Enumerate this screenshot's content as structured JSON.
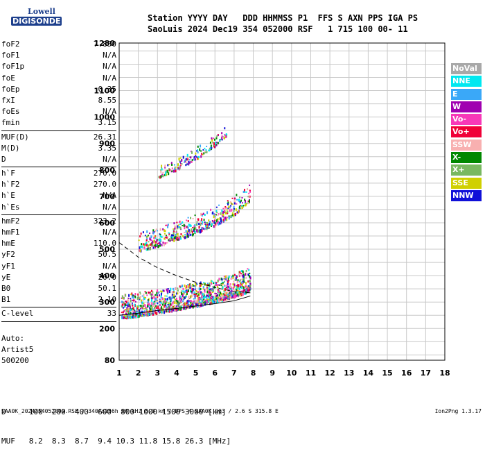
{
  "logo": {
    "line1": "Lowell",
    "line2": "DIGISONDE"
  },
  "header": {
    "line1": "Station YYYY DAY   DDD HHMMSS P1  FFS S AXN PPS IGA PS",
    "line2": "SaoLuis 2024 Dec19 354 052000 RSF   1 715 100 00- 11"
  },
  "params": [
    {
      "name": "foF2",
      "value": "7.850"
    },
    {
      "name": "foF1",
      "value": "N/A"
    },
    {
      "name": "foF1p",
      "value": "N/A"
    },
    {
      "name": "foE",
      "value": "N/A"
    },
    {
      "name": "foEp",
      "value": "0.35"
    },
    {
      "name": "fxI",
      "value": "8.55"
    },
    {
      "name": "foEs",
      "value": "N/A"
    },
    {
      "name": "fmin",
      "value": "3.15",
      "sep_after": true
    },
    {
      "name": "MUF(D)",
      "value": "26.31"
    },
    {
      "name": "M(D)",
      "value": "3.35"
    },
    {
      "name": "D",
      "value": "N/A",
      "sep_after": true
    },
    {
      "name": "h`F",
      "value": "270.0"
    },
    {
      "name": "h`F2",
      "value": "270.0"
    },
    {
      "name": "h`E",
      "value": "N/A"
    },
    {
      "name": "h`Es",
      "value": "N/A",
      "sep_after": true
    },
    {
      "name": "hmF2",
      "value": "323.2"
    },
    {
      "name": "hmF1",
      "value": "N/A"
    },
    {
      "name": "hmE",
      "value": "110.0"
    },
    {
      "name": "yF2",
      "value": "50.5"
    },
    {
      "name": "yF1",
      "value": "N/A"
    },
    {
      "name": "yE",
      "value": "20.0"
    },
    {
      "name": "B0",
      "value": "50.1"
    },
    {
      "name": "B1",
      "value": "2.10",
      "sep_after": true
    },
    {
      "name": "C-level",
      "value": "33",
      "sep_after": true
    }
  ],
  "auto": [
    "Auto:",
    "Artist5",
    "500200"
  ],
  "legend": [
    {
      "label": "NoVal",
      "color": "#a8a8a8"
    },
    {
      "label": "NNE",
      "color": "#00e8f0"
    },
    {
      "label": "E",
      "color": "#3aa8f8"
    },
    {
      "label": "W",
      "color": "#a000b0"
    },
    {
      "label": "Vo-",
      "color": "#f838b8"
    },
    {
      "label": "Vo+",
      "color": "#f00038"
    },
    {
      "label": "SSW",
      "color": "#f8b0b0"
    },
    {
      "label": "X-",
      "color": "#008800"
    },
    {
      "label": "X+",
      "color": "#78b860"
    },
    {
      "label": "SSE",
      "color": "#d0d000"
    },
    {
      "label": "NNW",
      "color": "#1010d8"
    }
  ],
  "dmuf": {
    "line1": "D     100  200  400  600  800 1000 1500 3000 [km]",
    "line2": "MUF   8.2  8.3  8.7  9.4 10.3 11.8 15.8 26.3 [MHz]"
  },
  "footer": {
    "left": "SAA0K_2024354052000.RSF / 340fx256h 50 kHz 5.0 km / DPS-4 SAA0K 903 / 2.6 S 315.8 E",
    "right": "Ion2Png 1.3.17"
  },
  "chart_data": {
    "type": "scatter",
    "xlim": [
      1,
      18
    ],
    "ylim": [
      80,
      1280
    ],
    "x_ticks": [
      1,
      2,
      3,
      4,
      5,
      6,
      7,
      8,
      9,
      10,
      11,
      12,
      13,
      14,
      15,
      16,
      17,
      18
    ],
    "y_ticks": [
      80,
      200,
      300,
      400,
      500,
      600,
      700,
      800,
      900,
      1000,
      1100,
      1280
    ],
    "grid": true,
    "legend_position": "right",
    "traces": [
      {
        "name": "F2 trace",
        "x": [
          1.1,
          1.5,
          2.0,
          2.5,
          3.0,
          3.5,
          4.0,
          4.5,
          5.0,
          5.5,
          6.0,
          6.5,
          7.0,
          7.5,
          7.85
        ],
        "y": [
          248,
          252,
          256,
          262,
          268,
          274,
          280,
          287,
          294,
          302,
          310,
          320,
          330,
          342,
          358
        ]
      },
      {
        "name": "F2 2-hop",
        "x": [
          2.0,
          3.0,
          4.0,
          5.0,
          6.0,
          7.0,
          7.8
        ],
        "y": [
          500,
          520,
          545,
          570,
          600,
          640,
          690
        ]
      },
      {
        "name": "F2 3-hop",
        "x": [
          3.0,
          4.0,
          5.0,
          6.0,
          6.6
        ],
        "y": [
          780,
          810,
          850,
          900,
          940
        ]
      },
      {
        "name": "profile dashed",
        "x": [
          1.0,
          2.0,
          3.0,
          4.0,
          5.0,
          6.0,
          7.0,
          7.85
        ],
        "y": [
          525,
          470,
          430,
          400,
          375,
          355,
          340,
          335
        ]
      },
      {
        "name": "profile solid",
        "x": [
          1.0,
          2.0,
          3.0,
          4.0,
          5.0,
          6.0,
          7.0,
          7.85
        ],
        "y": [
          250,
          258,
          268,
          276,
          285,
          294,
          305,
          323
        ]
      }
    ]
  }
}
